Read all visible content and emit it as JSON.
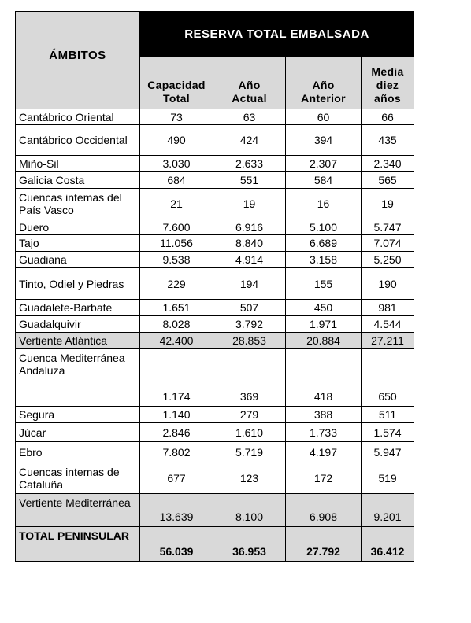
{
  "header": {
    "ambitos": "ÁMBITOS",
    "group_title": "RESERVA TOTAL EMBALSADA",
    "columns": [
      {
        "line1": "Capacidad",
        "line2": "Total"
      },
      {
        "line1": "Año",
        "line2": "Actual"
      },
      {
        "line1": "Año",
        "line2": "Anterior"
      },
      {
        "line1": "Media",
        "line2": "diez",
        "line3": "años"
      }
    ]
  },
  "rows": [
    {
      "name": "Cantábrico Oriental",
      "capacidad": "73",
      "actual": "63",
      "anterior": "60",
      "media": "66"
    },
    {
      "name": "Cantábrico Occidental",
      "capacidad": "490",
      "actual": "424",
      "anterior": "394",
      "media": "435"
    },
    {
      "name": "Miño-Sil",
      "capacidad": "3.030",
      "actual": "2.633",
      "anterior": "2.307",
      "media": "2.340"
    },
    {
      "name": "Galicia Costa",
      "capacidad": "684",
      "actual": "551",
      "anterior": "584",
      "media": "565"
    },
    {
      "name": "Cuencas intemas del País Vasco",
      "capacidad": "21",
      "actual": "19",
      "anterior": "16",
      "media": "19"
    },
    {
      "name": "Duero",
      "capacidad": "7.600",
      "actual": "6.916",
      "anterior": "5.100",
      "media": "5.747"
    },
    {
      "name": "Tajo",
      "capacidad": "11.056",
      "actual": "8.840",
      "anterior": "6.689",
      "media": "7.074"
    },
    {
      "name": "Guadiana",
      "capacidad": "9.538",
      "actual": "4.914",
      "anterior": "3.158",
      "media": "5.250"
    },
    {
      "name": "Tinto, Odiel y Piedras",
      "capacidad": "229",
      "actual": "194",
      "anterior": "155",
      "media": "190"
    },
    {
      "name": "Guadalete-Barbate",
      "capacidad": "1.651",
      "actual": "507",
      "anterior": "450",
      "media": "981"
    },
    {
      "name": "Guadalquivir",
      "capacidad": "8.028",
      "actual": "3.792",
      "anterior": "1.971",
      "media": "4.544"
    },
    {
      "name": "Vertiente Atlántica",
      "capacidad": "42.400",
      "actual": "28.853",
      "anterior": "20.884",
      "media": "27.211"
    },
    {
      "name": "Cuenca Mediterránea Andaluza",
      "capacidad": "1.174",
      "actual": "369",
      "anterior": "418",
      "media": "650"
    },
    {
      "name": "Segura",
      "capacidad": "1.140",
      "actual": "279",
      "anterior": "388",
      "media": "511"
    },
    {
      "name": "Júcar",
      "capacidad": "2.846",
      "actual": "1.610",
      "anterior": "1.733",
      "media": "1.574"
    },
    {
      "name": "Ebro",
      "capacidad": "7.802",
      "actual": "5.719",
      "anterior": "4.197",
      "media": "5.947"
    },
    {
      "name": "Cuencas intemas de Cataluña",
      "capacidad": "677",
      "actual": "123",
      "anterior": "172",
      "media": "519"
    },
    {
      "name": "Vertiente Mediterránea",
      "capacidad": "13.639",
      "actual": "8.100",
      "anterior": "6.908",
      "media": "9.201"
    }
  ],
  "total": {
    "name": "TOTAL PENINSULAR",
    "capacidad": "56.039",
    "actual": "36.953",
    "anterior": "27.792",
    "media": "36.412"
  }
}
